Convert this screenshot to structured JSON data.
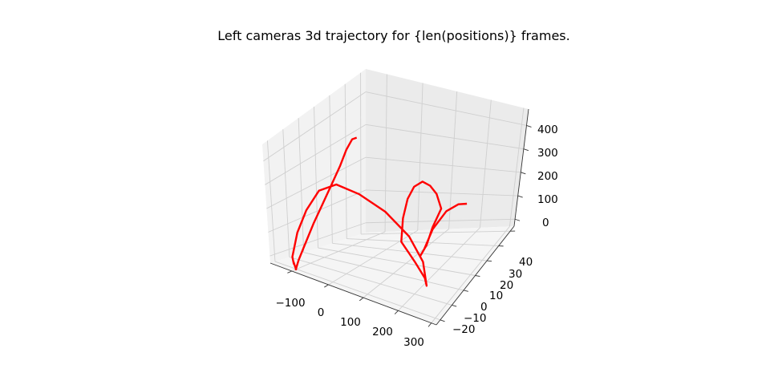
{
  "chart_data": {
    "type": "line",
    "projection": "3d",
    "title": "Left cameras 3d trajectory  for {len(positions)} frames.",
    "xlabel": "",
    "ylabel": "",
    "zlabel": "",
    "x_ticks": [
      "−100",
      "0",
      "100",
      "200",
      "300"
    ],
    "y_ticks": [
      "−20",
      "−10",
      "0",
      "10",
      "20",
      "30",
      "40"
    ],
    "z_ticks": [
      "0",
      "100",
      "200",
      "300",
      "400"
    ],
    "xlim": [
      -160,
      330
    ],
    "ylim": [
      -26,
      48
    ],
    "zlim": [
      -20,
      450
    ],
    "grid": true,
    "legend": "none",
    "series": [
      {
        "color": "#ff0000",
        "x": [
          -148,
          -142,
          -138,
          -128,
          -118,
          -106,
          -93,
          -83,
          -78,
          -76,
          -79,
          -86,
          -93,
          -97,
          -96,
          -88,
          -72,
          -50,
          -20,
          20,
          75,
          130,
          175,
          205,
          225,
          230,
          225,
          215,
          205,
          195,
          190,
          188,
          190,
          193,
          195,
          197,
          203,
          205,
          203,
          200,
          198,
          196
        ],
        "y": [
          43,
          38,
          32,
          24,
          15,
          4,
          -8,
          -18,
          -25,
          -28,
          -27,
          -26,
          -25,
          -24,
          -25,
          -22,
          -18,
          -13,
          -7,
          0,
          5,
          8,
          6,
          0,
          -6,
          -14,
          -22,
          -17,
          -10,
          -2,
          6,
          12,
          16,
          18,
          10,
          4,
          -3,
          0,
          8,
          20,
          30,
          37
        ],
        "z": [
          370,
          375,
          345,
          300,
          255,
          200,
          140,
          80,
          30,
          0,
          -3,
          5,
          15,
          5,
          35,
          130,
          220,
          300,
          330,
          300,
          250,
          175,
          100,
          30,
          80,
          160,
          250,
          330,
          390,
          420,
          425,
          398,
          360,
          300,
          240,
          180,
          150,
          175,
          240,
          290,
          300,
          290
        ]
      }
    ]
  }
}
